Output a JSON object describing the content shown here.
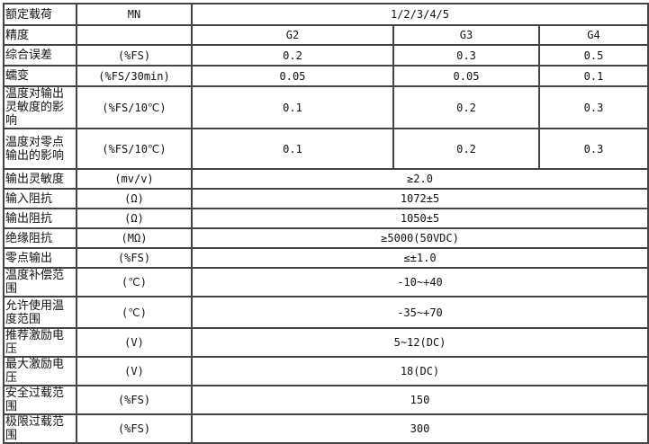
{
  "header": {
    "name": "额定载荷",
    "unit": "MN",
    "value": "1/2/3/4/5"
  },
  "grades": {
    "name": "精度",
    "values": [
      "G2",
      "G3",
      "G4"
    ]
  },
  "graded_rows": [
    {
      "name": "综合误差",
      "unit": "(%FS)",
      "values": [
        "0.2",
        "0.3",
        "0.5"
      ]
    },
    {
      "name": "蠕变",
      "unit": "(%FS/30min)",
      "values": [
        "0.05",
        "0.05",
        "0.1"
      ]
    },
    {
      "name": "温度对输出灵敏度的影响",
      "unit": "(%FS/10℃)",
      "values": [
        "0.1",
        "0.2",
        "0.3"
      ]
    },
    {
      "name": "温度对零点输出的影响",
      "unit": "(%FS/10℃)",
      "values": [
        "0.1",
        "0.2",
        "0.3"
      ]
    }
  ],
  "rows": [
    {
      "name": "输出灵敏度",
      "unit": "(mv/v)",
      "value": "≥2.0"
    },
    {
      "name": "输入阻抗",
      "unit": "(Ω)",
      "value": "1072±5"
    },
    {
      "name": "输出阻抗",
      "unit": "(Ω)",
      "value": "1050±5"
    },
    {
      "name": "绝缘阻抗",
      "unit": "(MΩ)",
      "value": "≥5000(50VDC)"
    },
    {
      "name": "零点输出",
      "unit": "(%FS)",
      "value": "≤±1.0"
    },
    {
      "name": "温度补偿范围",
      "unit": "(℃)",
      "value": "-10~+40"
    },
    {
      "name": "允许使用温度范围",
      "unit": "(℃)",
      "value": "-35~+70"
    },
    {
      "name": "推荐激励电压",
      "unit": "(V)",
      "value": "5~12(DC)"
    },
    {
      "name": "最大激励电压",
      "unit": "(V)",
      "value": "18(DC)"
    },
    {
      "name": "安全过载范围",
      "unit": "(%FS)",
      "value": "150"
    },
    {
      "name": "极限过载范围",
      "unit": "(%FS)",
      "value": "300"
    }
  ]
}
